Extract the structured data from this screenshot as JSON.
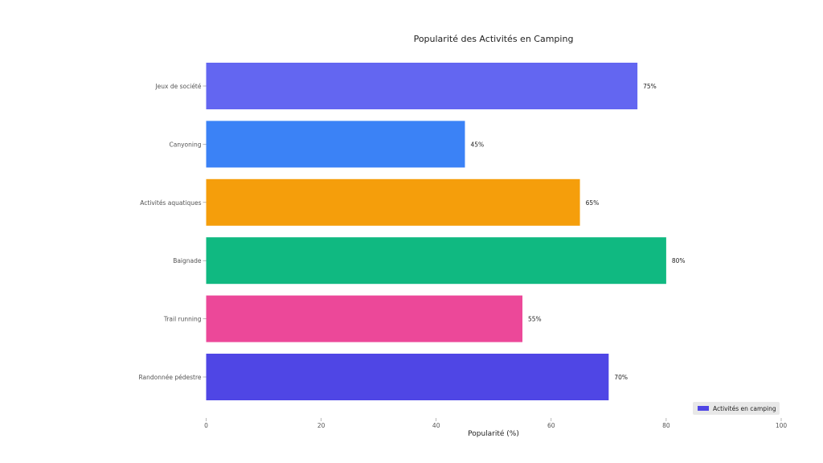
{
  "chart_data": {
    "type": "bar",
    "orientation": "horizontal",
    "title": "Popularité des Activités en Camping",
    "xlabel": "Popularité (%)",
    "ylabel": "",
    "xlim": [
      0,
      100
    ],
    "xticks": [
      0,
      20,
      40,
      60,
      80,
      100
    ],
    "grid": false,
    "legend_position": "bottom-right",
    "categories": [
      "Jeux de société",
      "Canyoning",
      "Activités aquatiques",
      "Baignade",
      "Trail running",
      "Randonnée pédestre"
    ],
    "series": [
      {
        "name": "Activités en camping",
        "values": [
          75,
          45,
          65,
          80,
          55,
          70
        ],
        "labels": [
          "75%",
          "45%",
          "65%",
          "80%",
          "55%",
          "70%"
        ],
        "colors": [
          "#6366f1",
          "#3b82f6",
          "#f59e0b",
          "#10b981",
          "#ec4899",
          "#4f46e5"
        ]
      }
    ],
    "legend_color": "#4f46e5"
  }
}
